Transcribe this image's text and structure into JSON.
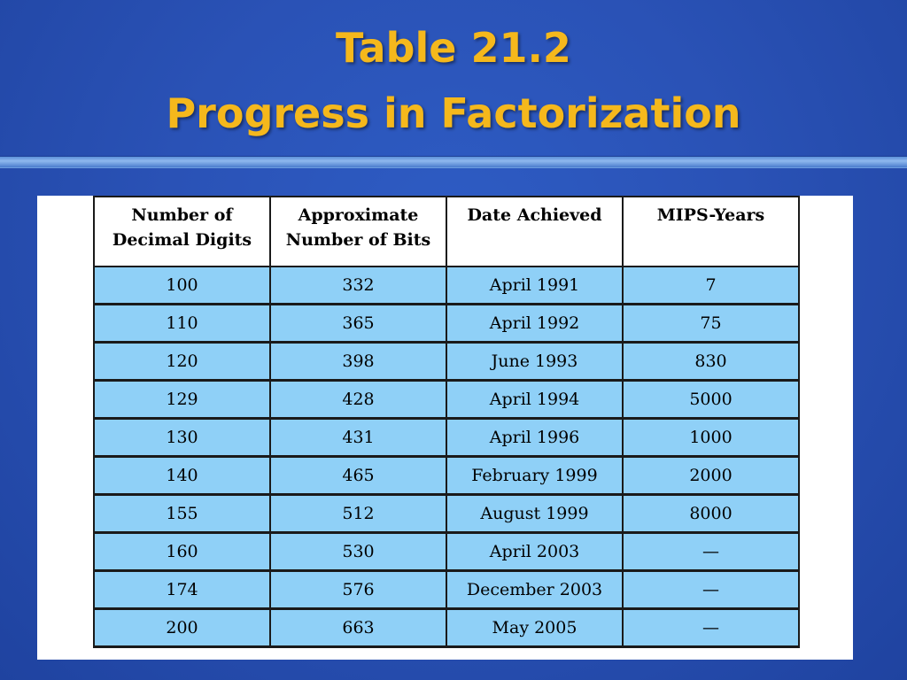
{
  "title": {
    "line1": "Table 21.2",
    "line2": "Progress in Factorization"
  },
  "table": {
    "headers": [
      "Number of Decimal Digits",
      "Approximate Number of Bits",
      "Date Achieved",
      "MIPS-Years"
    ],
    "rows": [
      [
        "100",
        "332",
        "April 1991",
        "7"
      ],
      [
        "110",
        "365",
        "April 1992",
        "75"
      ],
      [
        "120",
        "398",
        "June 1993",
        "830"
      ],
      [
        "129",
        "428",
        "April 1994",
        "5000"
      ],
      [
        "130",
        "431",
        "April 1996",
        "1000"
      ],
      [
        "140",
        "465",
        "February 1999",
        "2000"
      ],
      [
        "155",
        "512",
        "August 1999",
        "8000"
      ],
      [
        "160",
        "530",
        "April 2003",
        "—"
      ],
      [
        "174",
        "576",
        "December 2003",
        "—"
      ],
      [
        "200",
        "663",
        "May 2005",
        "—"
      ]
    ]
  },
  "colors": {
    "title": "#f5b81c",
    "background": "#2a52b6",
    "cell_fill": "#8fd0f7"
  }
}
